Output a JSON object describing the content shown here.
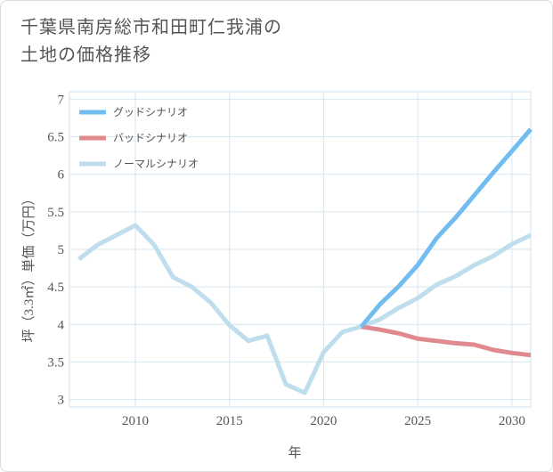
{
  "title_lines": [
    "千葉県南房総市和田町仁我浦の",
    "土地の価格推移"
  ],
  "chart_data": {
    "type": "line",
    "title": "千葉県南房総市和田町仁我浦の土地の価格推移",
    "xlabel": "年",
    "ylabel": "坪（3.3㎡）単価（万円）",
    "xlim": [
      2006.5,
      2031
    ],
    "ylim": [
      2.9,
      7.1
    ],
    "xticks": [
      2010,
      2015,
      2020,
      2025,
      2030
    ],
    "yticks": [
      3,
      3.5,
      4,
      4.5,
      5,
      5.5,
      6,
      6.5,
      7
    ],
    "xtick_labels": [
      "2010",
      "2015",
      "2020",
      "2025",
      "2030"
    ],
    "ytick_labels": [
      "3",
      "3.5",
      "4",
      "4.5",
      "5",
      "5.5",
      "6",
      "6.5",
      "7"
    ],
    "grid": true,
    "legend_position": "top-left",
    "series": [
      {
        "name": "グッドシナリオ",
        "color": "#72bdef",
        "x": [
          2022,
          2023,
          2024,
          2025,
          2026,
          2027,
          2028,
          2029,
          2030,
          2031
        ],
        "values": [
          3.97,
          4.27,
          4.51,
          4.79,
          5.15,
          5.42,
          5.72,
          6.02,
          6.31,
          6.6
        ]
      },
      {
        "name": "バッドシナリオ",
        "color": "#e08a8f",
        "x": [
          2022,
          2023,
          2024,
          2025,
          2026,
          2027,
          2028,
          2029,
          2030,
          2031
        ],
        "values": [
          3.97,
          3.93,
          3.88,
          3.81,
          3.78,
          3.75,
          3.73,
          3.66,
          3.62,
          3.59
        ]
      },
      {
        "name": "ノーマルシナリオ",
        "color": "#bfdeed",
        "x": [
          2007,
          2008,
          2009,
          2010,
          2011,
          2012,
          2013,
          2014,
          2015,
          2016,
          2017,
          2018,
          2019,
          2020,
          2021,
          2022,
          2023,
          2024,
          2025,
          2026,
          2027,
          2028,
          2029,
          2030,
          2031
        ],
        "values": [
          4.87,
          5.06,
          5.19,
          5.32,
          5.06,
          4.63,
          4.5,
          4.29,
          3.99,
          3.78,
          3.85,
          3.2,
          3.09,
          3.63,
          3.9,
          3.97,
          4.07,
          4.22,
          4.35,
          4.53,
          4.64,
          4.79,
          4.91,
          5.07,
          5.19
        ]
      }
    ]
  }
}
